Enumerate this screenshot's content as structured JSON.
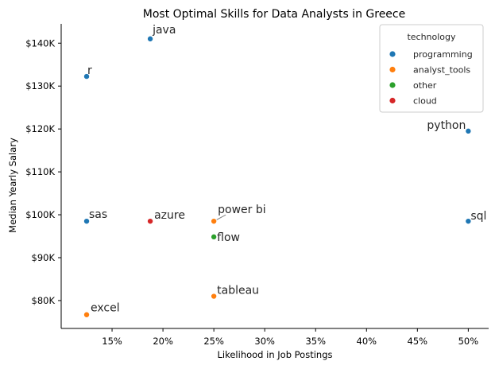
{
  "chart_data": {
    "type": "scatter",
    "title": "Most Optimal Skills for Data Analysts in Greece",
    "xlabel": "Likelihood in Job Postings",
    "ylabel": "Median Yearly Salary",
    "xlim": [
      0.1,
      0.52
    ],
    "ylim": [
      73500,
      144500
    ],
    "x_ticks": [
      0.15,
      0.2,
      0.25,
      0.3,
      0.35,
      0.4,
      0.45,
      0.5
    ],
    "x_tick_labels": [
      "15%",
      "20%",
      "25%",
      "30%",
      "35%",
      "40%",
      "45%",
      "50%"
    ],
    "y_ticks": [
      80000,
      90000,
      100000,
      110000,
      120000,
      130000,
      140000
    ],
    "y_tick_labels": [
      "$80K",
      "$90K",
      "$100K",
      "$110K",
      "$120K",
      "$130K",
      "$140K"
    ],
    "grid": false,
    "legend": {
      "title": "technology",
      "placement": "top-right",
      "entries": [
        {
          "name": "programming",
          "color": "#1f77b4"
        },
        {
          "name": "analyst_tools",
          "color": "#ff7f0e"
        },
        {
          "name": "other",
          "color": "#2ca02c"
        },
        {
          "name": "cloud",
          "color": "#d62728"
        }
      ]
    },
    "points": [
      {
        "label": "java",
        "x": 0.1875,
        "y": 141000,
        "technology": "programming"
      },
      {
        "label": "r",
        "x": 0.125,
        "y": 132250,
        "technology": "programming"
      },
      {
        "label": "python",
        "x": 0.5,
        "y": 119500,
        "technology": "programming"
      },
      {
        "label": "sas",
        "x": 0.125,
        "y": 98500,
        "technology": "programming"
      },
      {
        "label": "sql",
        "x": 0.5,
        "y": 98500,
        "technology": "programming"
      },
      {
        "label": "azure",
        "x": 0.1875,
        "y": 98500,
        "technology": "cloud"
      },
      {
        "label": "power bi",
        "x": 0.25,
        "y": 98500,
        "technology": "analyst_tools"
      },
      {
        "label": "flow",
        "x": 0.25,
        "y": 94850,
        "technology": "other"
      },
      {
        "label": "tableau",
        "x": 0.25,
        "y": 81000,
        "technology": "analyst_tools"
      },
      {
        "label": "excel",
        "x": 0.125,
        "y": 76700,
        "technology": "analyst_tools"
      }
    ]
  }
}
